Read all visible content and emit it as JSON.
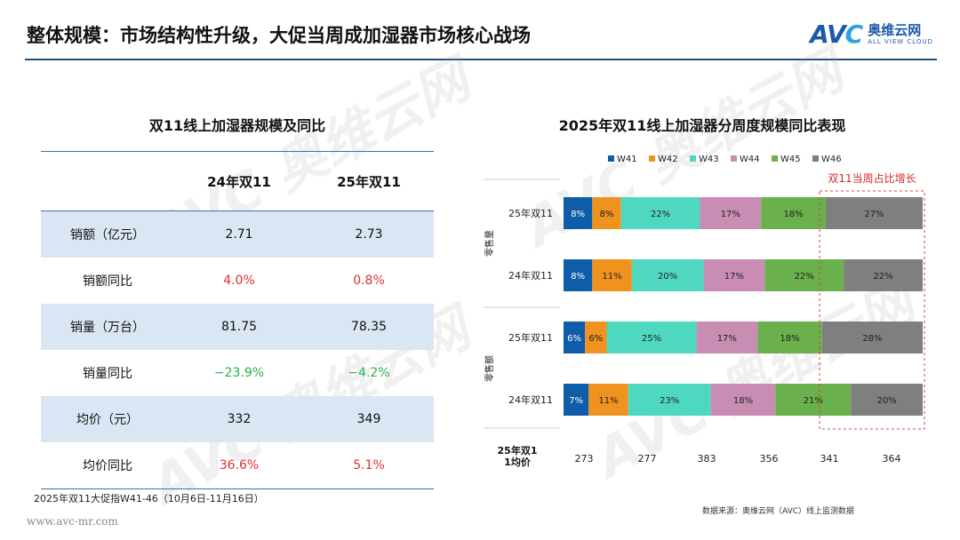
{
  "header": {
    "title": "整体规模：市场结构性升级，大促当周成加湿器市场核心战场",
    "brand_mark": "AVC",
    "brand_cn": "奥维云网",
    "brand_en": "ALL VIEW CLOUD"
  },
  "table": {
    "title": "双11线上加湿器规模及同比",
    "columns": [
      "",
      "24年双11",
      "25年双11"
    ],
    "rows": [
      {
        "label": "销额（亿元）",
        "v24": "2.71",
        "v25": "2.73",
        "shaded": true,
        "color24": "",
        "color25": ""
      },
      {
        "label": "销额同比",
        "v24": "4.0%",
        "v25": "0.8%",
        "shaded": false,
        "color24": "red",
        "color25": "red"
      },
      {
        "label": "销量（万台）",
        "v24": "81.75",
        "v25": "78.35",
        "shaded": true,
        "color24": "",
        "color25": ""
      },
      {
        "label": "销量同比",
        "v24": "−23.9%",
        "v25": "−4.2%",
        "shaded": false,
        "color24": "green",
        "color25": "green"
      },
      {
        "label": "均价（元）",
        "v24": "332",
        "v25": "349",
        "shaded": true,
        "color24": "",
        "color25": ""
      },
      {
        "label": "均价同比",
        "v24": "36.6%",
        "v25": "5.1%",
        "shaded": false,
        "color24": "red",
        "color25": "red"
      }
    ],
    "footnote": "2025年双11大促指W41-46（10月6日-11月16日）"
  },
  "site": "www.avc-mr.com",
  "chart_data": {
    "type": "bar",
    "stacked": "100%",
    "orientation": "horizontal",
    "title": "2025年双11线上加湿器分周度规模同比表现",
    "legend": [
      "W41",
      "W42",
      "W43",
      "W44",
      "W45",
      "W46"
    ],
    "legend_position": "top",
    "colors": [
      "#0f5ca8",
      "#f0921e",
      "#4fd8c0",
      "#c98db3",
      "#6ab04c",
      "#7f7f7f"
    ],
    "groups": [
      {
        "label": "零售量",
        "bars": [
          {
            "label": "25年双11",
            "values": [
              8,
              8,
              22,
              17,
              18,
              27
            ]
          },
          {
            "label": "24年双11",
            "values": [
              8,
              11,
              20,
              17,
              22,
              22
            ]
          }
        ]
      },
      {
        "label": "零售额",
        "bars": [
          {
            "label": "25年双11",
            "values": [
              6,
              6,
              25,
              17,
              18,
              28
            ]
          },
          {
            "label": "24年双11",
            "values": [
              7,
              11,
              23,
              18,
              21,
              20
            ]
          }
        ]
      }
    ],
    "value_suffix": "%",
    "annotation": "双11当周占比增长",
    "avg_price_label": "25年双11均价",
    "avg_prices": [
      "273",
      "277",
      "383",
      "356",
      "341",
      "364"
    ]
  },
  "source": "数据来源：奥维云网（AVC）线上监测数据"
}
